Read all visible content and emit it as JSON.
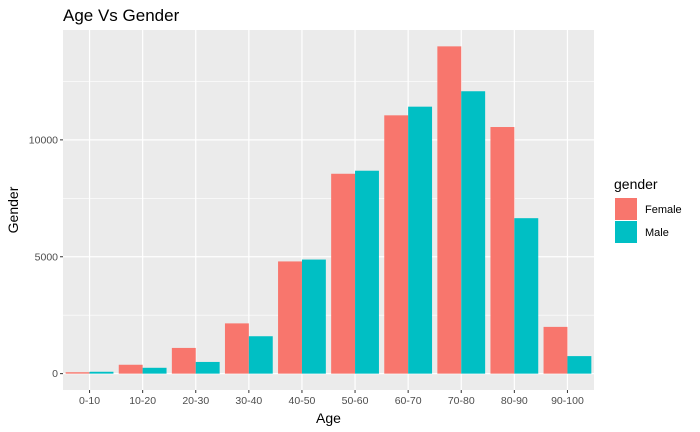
{
  "chart_data": {
    "type": "bar",
    "title": "Age Vs Gender",
    "xlabel": "Age",
    "ylabel": "Gender",
    "categories": [
      "0-10",
      "10-20",
      "20-30",
      "30-40",
      "40-50",
      "50-60",
      "60-70",
      "70-80",
      "80-90",
      "90-100"
    ],
    "series": [
      {
        "name": "Female",
        "color": "#F8766D",
        "values": [
          60,
          380,
          1100,
          2150,
          4800,
          8550,
          11050,
          14000,
          10550,
          2000
        ]
      },
      {
        "name": "Male",
        "color": "#00BFC4",
        "values": [
          80,
          250,
          500,
          1600,
          4880,
          8680,
          11420,
          12080,
          6650,
          750
        ]
      }
    ],
    "ylim": [
      -700,
      14700
    ],
    "yticks": [
      0,
      5000,
      10000
    ],
    "ytick_labels": [
      "0",
      "5000",
      "10000"
    ],
    "grid": true,
    "legend": {
      "title": "gender",
      "position": "right"
    }
  }
}
